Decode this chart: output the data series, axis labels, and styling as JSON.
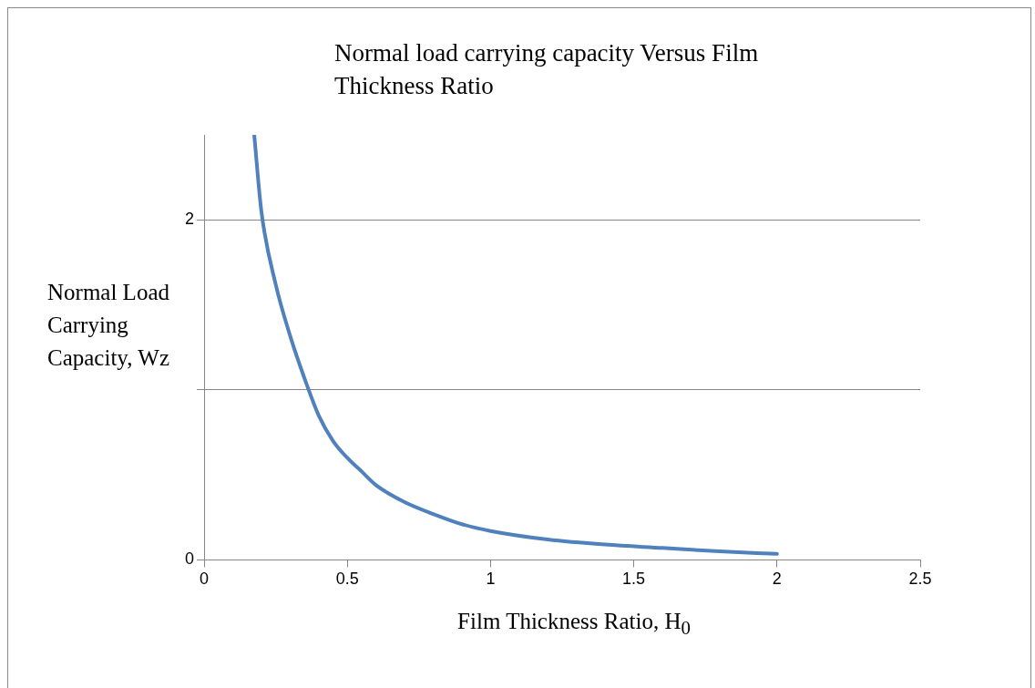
{
  "chart_data": {
    "type": "line",
    "title": "Normal load carrying capacity Versus Film Thickness Ratio",
    "xlabel": "Film Thickness Ratio, H$_{0}$",
    "ylabel": "Normal Load Carrying Capacity, Wz",
    "series": [
      {
        "color": "#4f81bd",
        "x": [
          0.175,
          0.2,
          0.25,
          0.3,
          0.35,
          0.4,
          0.45,
          0.5,
          0.55,
          0.6,
          0.7,
          0.8,
          0.9,
          1.0,
          1.2,
          1.4,
          1.6,
          1.8,
          2.0
        ],
        "values": [
          2.5,
          2.05,
          1.62,
          1.32,
          1.07,
          0.85,
          0.7,
          0.6,
          0.52,
          0.44,
          0.34,
          0.27,
          0.21,
          0.17,
          0.12,
          0.09,
          0.07,
          0.05,
          0.035
        ]
      }
    ],
    "xlim": [
      0,
      2.5
    ],
    "xticks": [
      0,
      0.5,
      1,
      1.5,
      2,
      2.5
    ],
    "ylim": [
      0,
      2.5
    ],
    "yticks": [
      0,
      {
        "value": 1,
        "label": null
      },
      2
    ],
    "grid": "y",
    "legend": false,
    "marker": "none",
    "line_style": "solid"
  }
}
